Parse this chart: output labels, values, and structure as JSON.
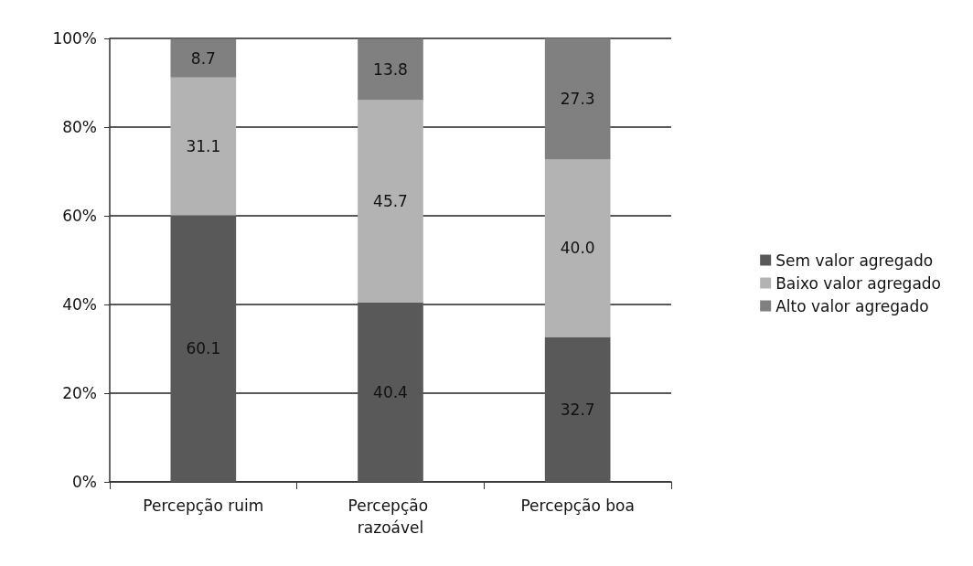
{
  "chart_data": {
    "type": "bar",
    "stacked": true,
    "categories": [
      "Percepção ruim",
      "Percepção razoável",
      "Percepção boa"
    ],
    "series": [
      {
        "name": "Sem valor agregado",
        "color": "#595959",
        "values": [
          60.1,
          40.4,
          32.7
        ],
        "value_labels": [
          "60.1",
          "40.4",
          "32.7"
        ]
      },
      {
        "name": "Baixo valor agregado",
        "color": "#b3b3b3",
        "values": [
          31.1,
          45.7,
          40.0
        ],
        "value_labels": [
          "31.1",
          "45.7",
          "40.0"
        ]
      },
      {
        "name": "Alto valor agregado",
        "color": "#808080",
        "values": [
          8.7,
          13.8,
          27.3
        ],
        "value_labels": [
          "8.7",
          "13.8",
          "27.3"
        ]
      }
    ],
    "ylim": [
      0,
      100
    ],
    "yticks": [
      {
        "value": 0,
        "label": "0%"
      },
      {
        "value": 20,
        "label": "20%"
      },
      {
        "value": 40,
        "label": "40%"
      },
      {
        "value": 60,
        "label": "60%"
      },
      {
        "value": 80,
        "label": "80%"
      },
      {
        "value": 100,
        "label": "100%"
      }
    ],
    "grid": "y",
    "legend": "right"
  }
}
